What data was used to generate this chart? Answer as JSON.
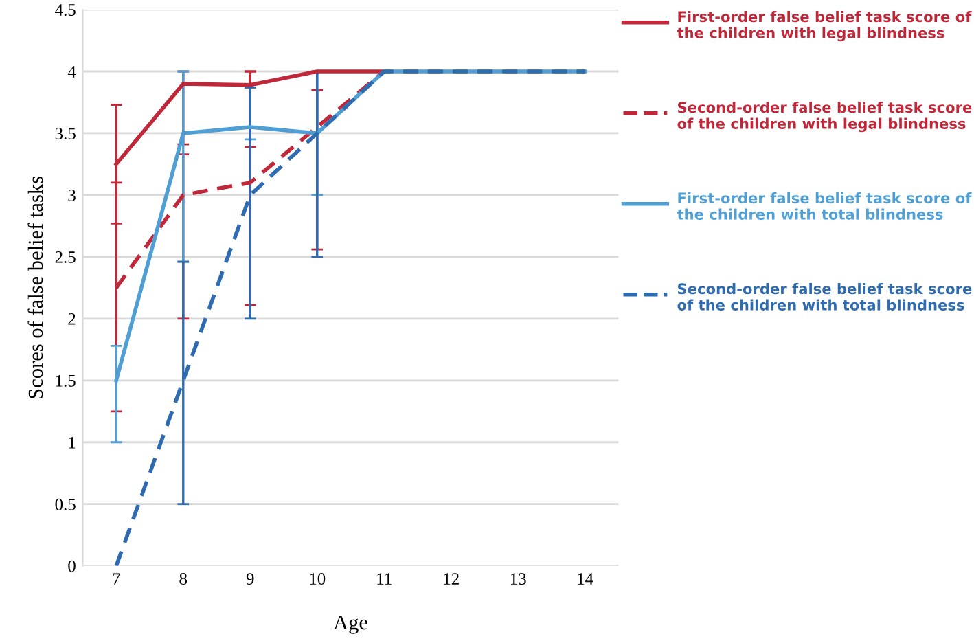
{
  "chart_data": {
    "type": "line",
    "xlabel": "Age",
    "ylabel": "Scores of false belief tasks",
    "categories": [
      "7",
      "8",
      "9",
      "10",
      "11",
      "12",
      "13",
      "14"
    ],
    "ylim": [
      0,
      4.5
    ],
    "yticks": [
      0,
      0.5,
      1,
      1.5,
      2,
      2.5,
      3,
      3.5,
      4,
      4.5
    ],
    "grid": "y",
    "legend": "right",
    "marker": "none",
    "series": [
      {
        "name": "First-order false belief task score of the children with legal blindness",
        "color": "#c0283a",
        "line_style": "solid",
        "values": [
          3.25,
          3.9,
          3.89,
          4,
          4,
          null,
          null,
          null
        ],
        "errors": [
          [
            2.77,
            3.73
          ],
          [
            3.41,
            4.0
          ],
          [
            3.39,
            4.0
          ],
          null,
          null,
          null,
          null,
          null
        ]
      },
      {
        "name": "Second-order false belief task score of the children with legal blindness",
        "color": "#c0283a",
        "line_style": "dashed",
        "values": [
          2.25,
          3.0,
          3.1,
          3.55,
          4,
          null,
          null,
          null
        ],
        "errors": [
          [
            1.25,
            3.1
          ],
          [
            2.0,
            3.33
          ],
          [
            2.11,
            4.0
          ],
          [
            2.56,
            3.85
          ],
          null,
          null,
          null,
          null
        ]
      },
      {
        "name": "First-order false belief task score of the children with total blindness",
        "color": "#4f9fd4",
        "line_style": "solid",
        "values": [
          1.5,
          3.5,
          3.55,
          3.5,
          4,
          4,
          4,
          4
        ],
        "errors": [
          [
            1.0,
            1.78
          ],
          [
            2.46,
            4.0
          ],
          [
            3.45,
            3.87
          ],
          [
            3.0,
            4.0
          ],
          null,
          null,
          null,
          null
        ]
      },
      {
        "name": "Second-order false belief task score of the children with total blindness",
        "color": "#2e6bb0",
        "line_style": "dashed",
        "values": [
          0,
          1.5,
          3.0,
          3.5,
          4,
          4,
          4,
          4
        ],
        "errors": [
          null,
          [
            0.5,
            2.46
          ],
          [
            2.0,
            3.87
          ],
          [
            2.5,
            4.0
          ],
          null,
          null,
          null,
          null
        ]
      }
    ]
  }
}
